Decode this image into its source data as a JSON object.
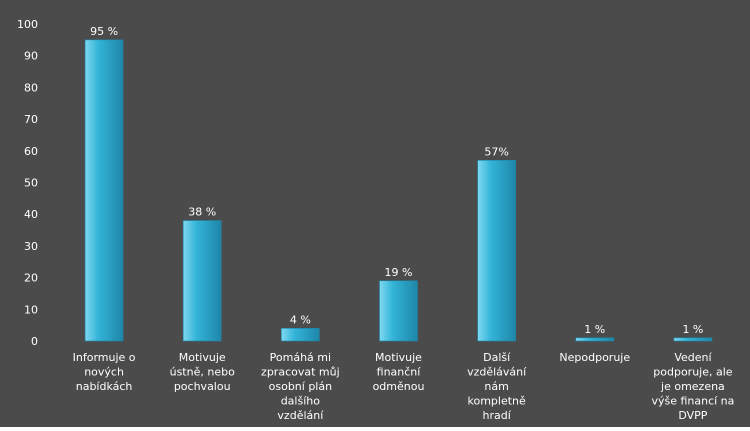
{
  "chart_data": {
    "type": "bar",
    "categories": [
      "Informuje o nových nabídkách",
      "Motivuje ústně, nebo pochvalou",
      "Pomáhá mi zpracovat můj osobní plán dalšího vzdělání",
      "Motivuje finanční odměnou",
      "Další vzdělávání nám kompletně hradí",
      "Nepodporuje",
      "Vedení podporuje, ale je omezena výše financí na DVPP"
    ],
    "category_lines": [
      [
        "Informuje o",
        "nových",
        "nabídkách"
      ],
      [
        "Motivuje",
        "ústně, nebo",
        "pochvalou"
      ],
      [
        "Pomáhá mi",
        "zpracovat můj",
        "osobní plán",
        "dalšího",
        "vzdělání"
      ],
      [
        "Motivuje",
        "finanční",
        "odměnou"
      ],
      [
        "Další",
        "vzdělávání",
        "nám",
        "kompletně",
        "hradí"
      ],
      [
        "Nepodporuje"
      ],
      [
        "Vedení",
        "podporuje, ale",
        "je omezena",
        "výše financí na",
        "DVPP"
      ]
    ],
    "values": [
      95,
      38,
      4,
      19,
      57,
      1,
      1
    ],
    "data_labels": [
      "95 %",
      "38 %",
      "4 %",
      "19 %",
      "57%",
      "1 %",
      "1 %"
    ],
    "y_ticks": [
      "0",
      "10",
      "20",
      "30",
      "40",
      "50",
      "60",
      "70",
      "80",
      "90",
      "100"
    ],
    "ylim": [
      0,
      100
    ],
    "title": "",
    "xlabel": "",
    "ylabel": "",
    "grid": false,
    "legend": "none",
    "colors": {
      "background": "#4b4b4b",
      "bar": "#33b4d8",
      "bar_light": "#7fd8f0",
      "bar_dark": "#1e86a8",
      "text": "#ffffff",
      "axis": "#9a9a9a"
    }
  }
}
